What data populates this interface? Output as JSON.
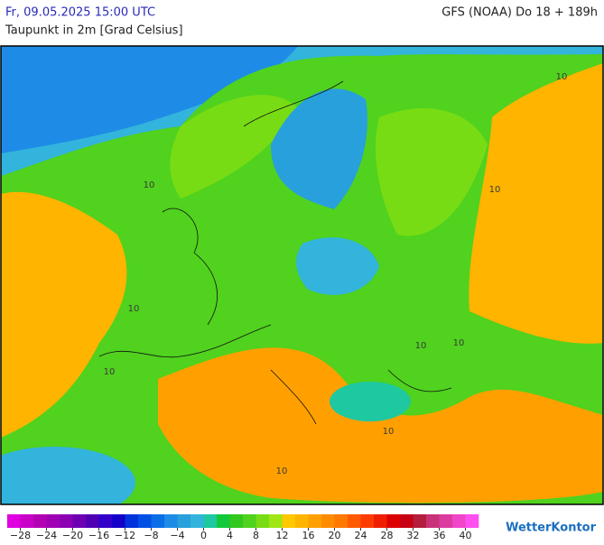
{
  "header": {
    "timestamp": "Fr, 09.05.2025 15:00 UTC",
    "model": "GFS (NOAA) Do 18 + 189h",
    "title": "Taupunkt in 2m [Grad Celsius]"
  },
  "map": {
    "contour_labels": [
      "10",
      "10",
      "10",
      "10",
      "10",
      "10",
      "10",
      "10",
      "10"
    ]
  },
  "colorbar": {
    "range": [
      -30,
      42
    ],
    "colors": [
      "#e000e0",
      "#c800c8",
      "#b400b4",
      "#a000b4",
      "#8c00b4",
      "#6e00b4",
      "#5000b4",
      "#3200c8",
      "#1400c8",
      "#0032dc",
      "#0050e6",
      "#0a6ee6",
      "#1e8ce6",
      "#28a0dc",
      "#32b4dc",
      "#1ec8a0",
      "#14c83c",
      "#32c81e",
      "#50d21e",
      "#78dc14",
      "#a0e614",
      "#ffc800",
      "#ffb400",
      "#ffa000",
      "#ff8c00",
      "#ff7800",
      "#ff5a00",
      "#ff3c00",
      "#f01e00",
      "#dc0000",
      "#c80014",
      "#b41e3c",
      "#c83278",
      "#dc3ca0",
      "#f046c8",
      "#ff50f0"
    ],
    "ticks": [
      {
        "value": -28,
        "label": "−28"
      },
      {
        "value": -24,
        "label": "−24"
      },
      {
        "value": -20,
        "label": "−20"
      },
      {
        "value": -16,
        "label": "−16"
      },
      {
        "value": -12,
        "label": "−12"
      },
      {
        "value": -8,
        "label": "−8"
      },
      {
        "value": -4,
        "label": "−4"
      },
      0,
      4,
      8,
      12,
      16,
      20,
      24,
      28,
      32,
      36,
      40
    ]
  },
  "brand": "WetterKontor"
}
